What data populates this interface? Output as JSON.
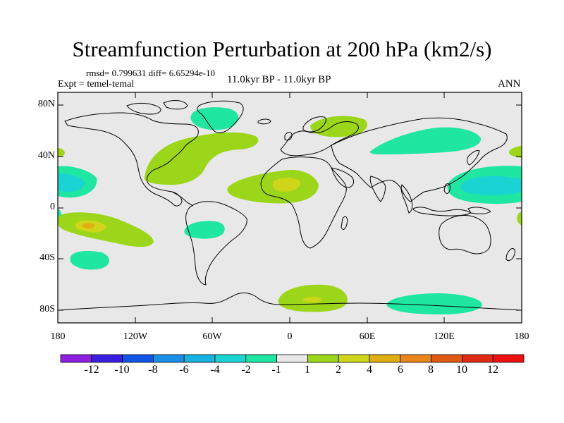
{
  "figure": {
    "title": "Streamfunction Perturbation at 200 hPa (km2/s)",
    "stats_line": "rmsd= 0.799631 diff= 6.65294e-10",
    "experiment": "Expt = temel-temal",
    "period": "11.0kyr BP - 11.0kyr BP",
    "season": "ANN"
  },
  "axes": {
    "y_ticks": [
      "80N",
      "40N",
      "0",
      "40S",
      "80S"
    ],
    "x_ticks": [
      "180",
      "120W",
      "60W",
      "0",
      "60E",
      "120E",
      "180"
    ]
  },
  "colorbar": {
    "labels": [
      "-12",
      "-10",
      "-8",
      "-6",
      "-4",
      "-2",
      "-1",
      "1",
      "2",
      "4",
      "6",
      "8",
      "10",
      "12"
    ],
    "colors": [
      "#8c1fe0",
      "#3a1fe0",
      "#1155e6",
      "#1a8fe6",
      "#16b2e0",
      "#1ad4d4",
      "#1fe6a0",
      "#e8e8e8",
      "#9cd61a",
      "#cfd61a",
      "#e0ae12",
      "#e8861a",
      "#e05a14",
      "#e02a14",
      "#ee1010"
    ]
  },
  "colors": {
    "background": "#e8e8e8",
    "positive_1_2": "#9cd61a",
    "positive_2_4": "#cfd61a",
    "positive_4_6": "#e0ae12",
    "negative_1_2": "#1fe6a0",
    "negative_2_4": "#1ad4d4"
  }
}
